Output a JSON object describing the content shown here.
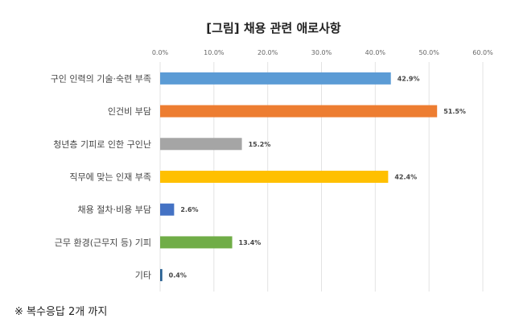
{
  "chart_data": {
    "type": "bar",
    "orientation": "horizontal",
    "title": "[그림] 채용 관련 애로사항",
    "categories": [
      "구인 인력의 기술·숙련 부족",
      "인건비 부담",
      "청년층 기피로 인한 구인난",
      "직무에 맞는 인재 부족",
      "채용 절차·비용 부담",
      "근무 환경(근무지 등) 기피",
      "기타"
    ],
    "values": [
      42.9,
      51.5,
      15.2,
      42.4,
      2.6,
      13.4,
      0.4
    ],
    "data_labels": [
      "42.9%",
      "51.5%",
      "15.2%",
      "42.4%",
      "2.6%",
      "13.4%",
      "0.4%"
    ],
    "colors": [
      "#5b9bd5",
      "#ed7d31",
      "#a5a5a5",
      "#ffc000",
      "#4472c4",
      "#70ad47",
      "#255e91"
    ],
    "xlim": [
      0,
      60
    ],
    "ticks": [
      0,
      10,
      20,
      30,
      40,
      50,
      60
    ],
    "tick_labels": [
      "0.0%",
      "10.0%",
      "20.0%",
      "30.0%",
      "40.0%",
      "50.0%",
      "60.0%"
    ],
    "axis_position": "top",
    "grid": true,
    "xlabel": "",
    "ylabel": ""
  },
  "footnote": "※ 복수응답 2개 까지"
}
